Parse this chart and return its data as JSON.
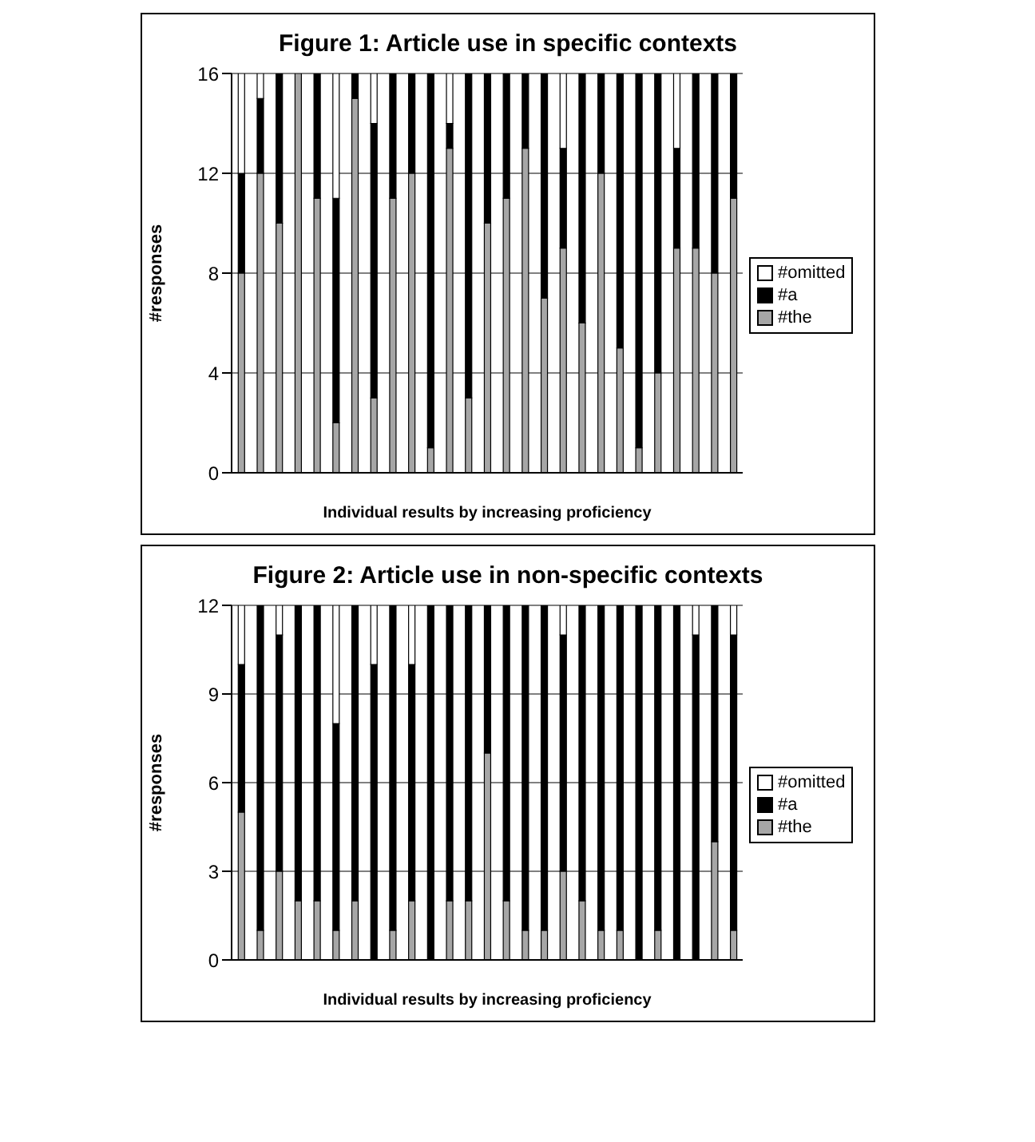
{
  "chart_data": [
    {
      "type": "bar",
      "title": "Figure 1: Article use in specific contexts",
      "xlabel": "Individual results by increasing proficiency",
      "ylabel": "#responses",
      "stacked": true,
      "categories": [
        null,
        null,
        null,
        null,
        null,
        null,
        null,
        null,
        null,
        null,
        null,
        null,
        null,
        null,
        null,
        null,
        null,
        null,
        null,
        null,
        null,
        null,
        null,
        null,
        null,
        null,
        null
      ],
      "ylim": [
        0,
        16
      ],
      "yticks": [
        0,
        4,
        8,
        12,
        16
      ],
      "grid": "y",
      "legend": "right",
      "tick_labels": "y",
      "series": [
        {
          "name": "#the",
          "color": "#a6a6a6",
          "values": [
            8,
            12,
            10,
            16,
            11,
            2,
            15,
            3,
            11,
            12,
            1,
            13,
            3,
            10,
            11,
            13,
            7,
            9,
            6,
            12,
            5,
            1,
            4,
            9,
            9,
            8,
            11
          ]
        },
        {
          "name": "#a",
          "color": "#000000",
          "values": [
            4,
            3,
            6,
            0,
            5,
            9,
            1,
            11,
            5,
            4,
            15,
            1,
            13,
            6,
            5,
            3,
            9,
            4,
            10,
            4,
            11,
            15,
            12,
            4,
            7,
            8,
            5
          ]
        },
        {
          "name": "#omitted",
          "color": "#ffffff",
          "values": [
            4,
            1,
            0,
            0,
            0,
            5,
            0,
            2,
            0,
            0,
            0,
            2,
            0,
            0,
            0,
            0,
            0,
            3,
            0,
            0,
            0,
            0,
            0,
            3,
            0,
            0,
            0
          ]
        }
      ]
    },
    {
      "type": "bar",
      "title": "Figure 2: Article use in non-specific contexts",
      "xlabel": "Individual results by increasing proficiency",
      "ylabel": "#responses",
      "stacked": true,
      "categories": [
        null,
        null,
        null,
        null,
        null,
        null,
        null,
        null,
        null,
        null,
        null,
        null,
        null,
        null,
        null,
        null,
        null,
        null,
        null,
        null,
        null,
        null,
        null,
        null,
        null,
        null,
        null
      ],
      "ylim": [
        0,
        12
      ],
      "yticks": [
        0,
        3,
        6,
        9,
        12
      ],
      "grid": "y",
      "legend": "right",
      "tick_labels": "y",
      "series": [
        {
          "name": "#the",
          "color": "#a6a6a6",
          "values": [
            5,
            1,
            3,
            2,
            2,
            1,
            2,
            0,
            1,
            2,
            0,
            2,
            2,
            7,
            2,
            1,
            1,
            3,
            2,
            1,
            1,
            0,
            1,
            0,
            0,
            4,
            1
          ]
        },
        {
          "name": "#a",
          "color": "#000000",
          "values": [
            5,
            11,
            8,
            10,
            10,
            7,
            10,
            10,
            11,
            8,
            12,
            10,
            10,
            5,
            10,
            11,
            11,
            8,
            10,
            11,
            11,
            12,
            11,
            12,
            11,
            8,
            10
          ]
        },
        {
          "name": "#omitted",
          "color": "#ffffff",
          "values": [
            2,
            0,
            1,
            0,
            0,
            4,
            0,
            2,
            0,
            2,
            0,
            0,
            0,
            0,
            0,
            0,
            0,
            1,
            0,
            0,
            0,
            0,
            0,
            0,
            1,
            0,
            1
          ]
        }
      ]
    }
  ]
}
